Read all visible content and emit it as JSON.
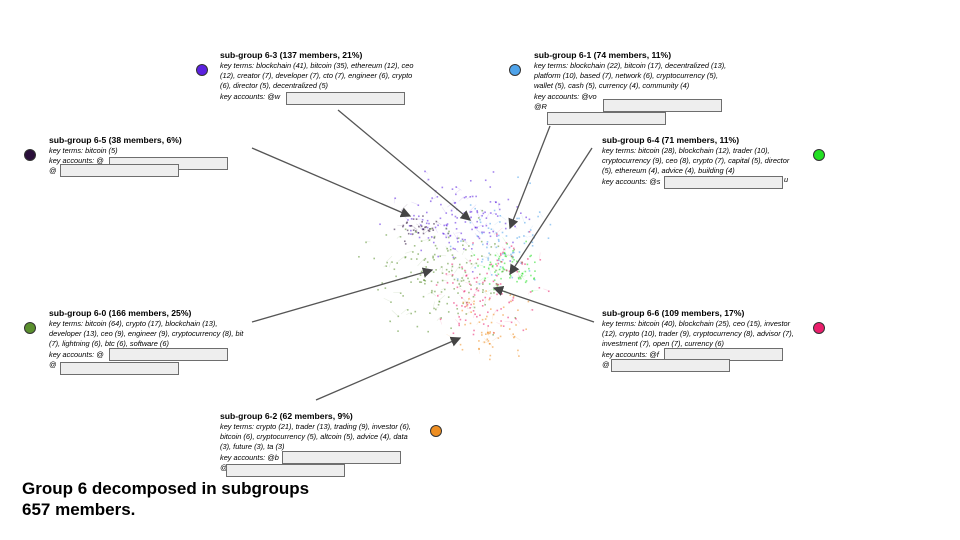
{
  "subgroups": [
    {
      "id": "6-3",
      "title": "sub-group 6-3 (137 members, 21%)",
      "color": "#5b21e0",
      "terms": "key terms: blockchain (41), bitcoin (35), ethereum (12), ceo (12), creator (7), developer (7), cto (7), engineer (6), crypto (6), director (5), decentralized (5)",
      "accounts": "key accounts: @w"
    },
    {
      "id": "6-1",
      "title": "sub-group 6-1 (74 members, 11%)",
      "color": "#4ea3ea",
      "terms": "key terms: blockchain (22), bitcoin (17), decentralized (13), platform (10), based (7), network (6), cryptocurrency (5), wallet (5), cash (5), currency (4), community (4)",
      "accounts": "key accounts: @vo",
      "accounts2": "@R"
    },
    {
      "id": "6-5",
      "title": "sub-group 6-5 (38 members, 6%)",
      "color": "#2a0f3a",
      "terms": "key terms: bitcoin (5)",
      "accounts": "key accounts: @",
      "accounts2": "@"
    },
    {
      "id": "6-4",
      "title": "sub-group 6-4 (71 members, 11%)",
      "color": "#22e022",
      "terms": "key terms: bitcoin (28), blockchain (12), trader (10), cryptocurrency (9), ceo (8), crypto (7), capital (5), director (5), ethereum (4), advice (4), building (4)",
      "accounts": "key accounts: @s",
      "accounts_tail": "u"
    },
    {
      "id": "6-0",
      "title": "sub-group 6-0 (166 members, 25%)",
      "color": "#5a8f2e",
      "terms": "key terms: bitcoin (64), crypto (17), blockchain (13), developer (13), ceo (9), engineer (9), cryptocurrency (8), bit (7), lightning (6), btc (6), software (6)",
      "accounts": "key accounts: @",
      "accounts2": "@"
    },
    {
      "id": "6-6",
      "title": "sub-group 6-6 (109 members, 17%)",
      "color": "#ea1f6c",
      "terms": "key terms: bitcoin (40), blockchain (25), ceo (15), investor (12), crypto (10), trader (9), cryptocurrency (8), advisor (7), investment (7), open (7), currency (6)",
      "accounts": "key accounts: @f",
      "accounts2": "@"
    },
    {
      "id": "6-2",
      "title": "sub-group 6-2 (62 members, 9%)",
      "color": "#ee8e22",
      "terms": "key terms: crypto (21), trader (13), trading (9), investor (6), bitcoin (6), cryptocurrency (5), altcoin (5), advice (4), data (3), future (3), ta (3)",
      "accounts": "key accounts: @b",
      "accounts2": "@"
    }
  ],
  "footer": {
    "line1": "Group 6 decomposed in subgroups",
    "line2": "657 members."
  }
}
